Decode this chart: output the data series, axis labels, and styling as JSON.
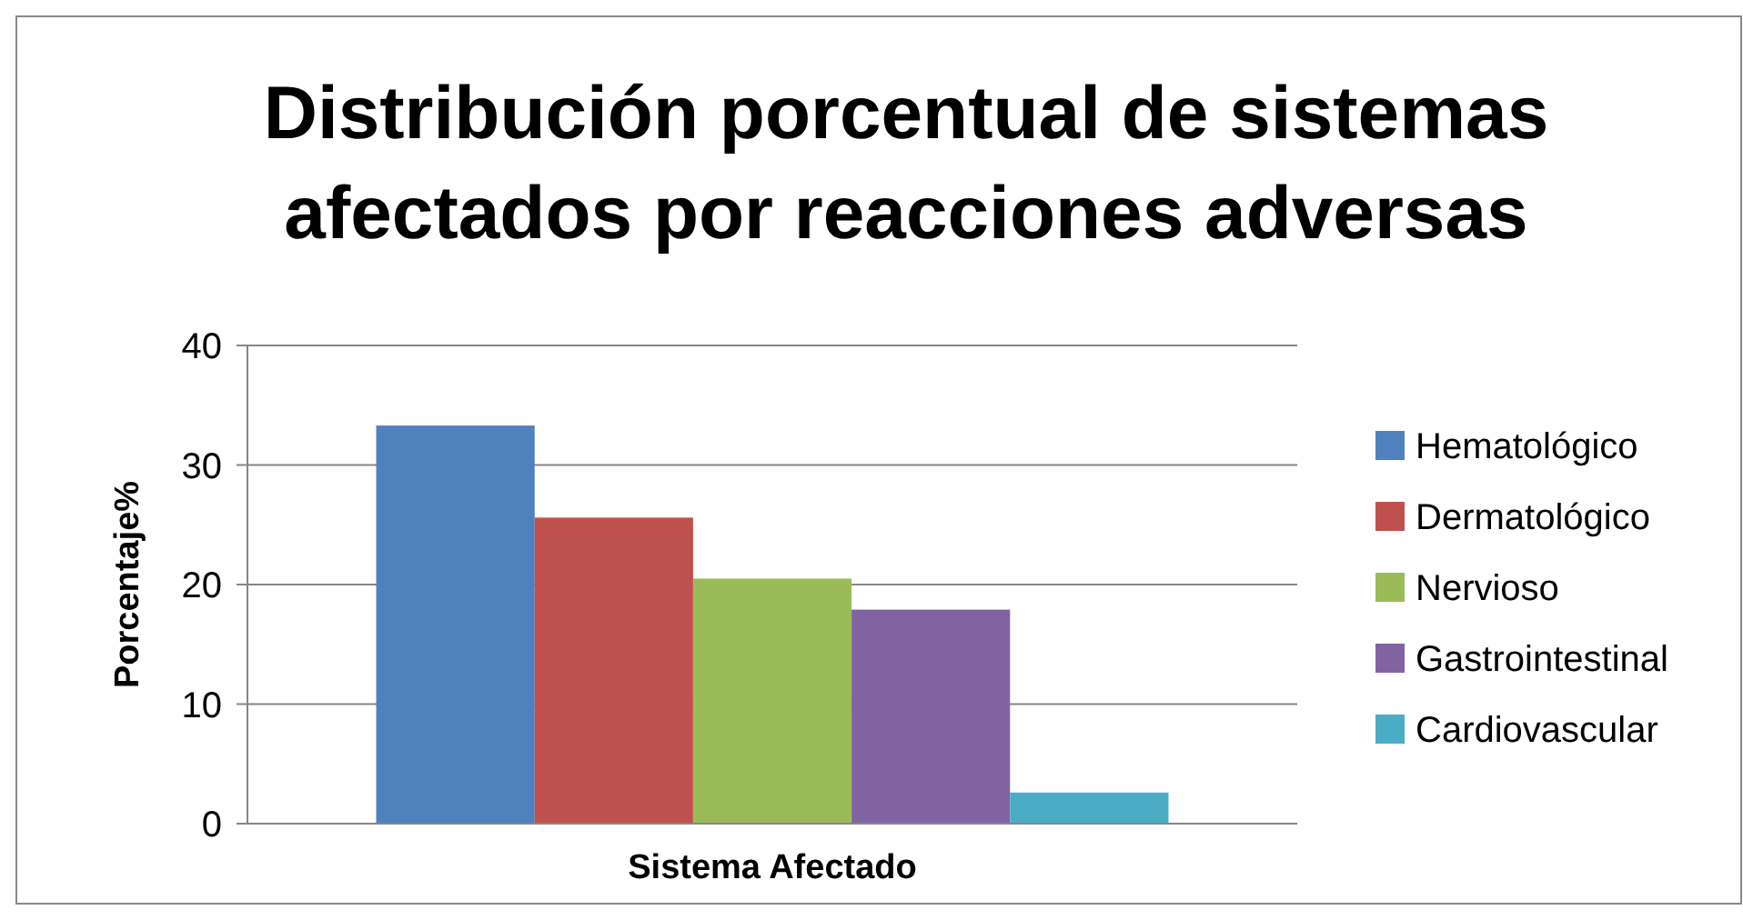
{
  "chart_data": {
    "type": "bar",
    "title": "Distribución porcentual de sistemas afectados por reacciones adversas",
    "xlabel": "Sistema Afectado",
    "ylabel": "Porcentaje%",
    "categories": [
      null
    ],
    "series": [
      {
        "name": "Hematológico",
        "color": "#4f81bd",
        "values": [
          33.3
        ]
      },
      {
        "name": "Dermatológico",
        "color": "#c0504d",
        "values": [
          25.6
        ]
      },
      {
        "name": "Nervioso",
        "color": "#9bbb59",
        "values": [
          20.5
        ]
      },
      {
        "name": "Gastrointestinal",
        "color": "#8064a2",
        "values": [
          17.9
        ]
      },
      {
        "name": "Cardiovascular",
        "color": "#4bacc6",
        "values": [
          2.6
        ]
      }
    ],
    "ylim": [
      0,
      40
    ],
    "yticks": [
      0,
      10,
      20,
      30,
      40
    ],
    "grid": "y",
    "legend": "right"
  }
}
